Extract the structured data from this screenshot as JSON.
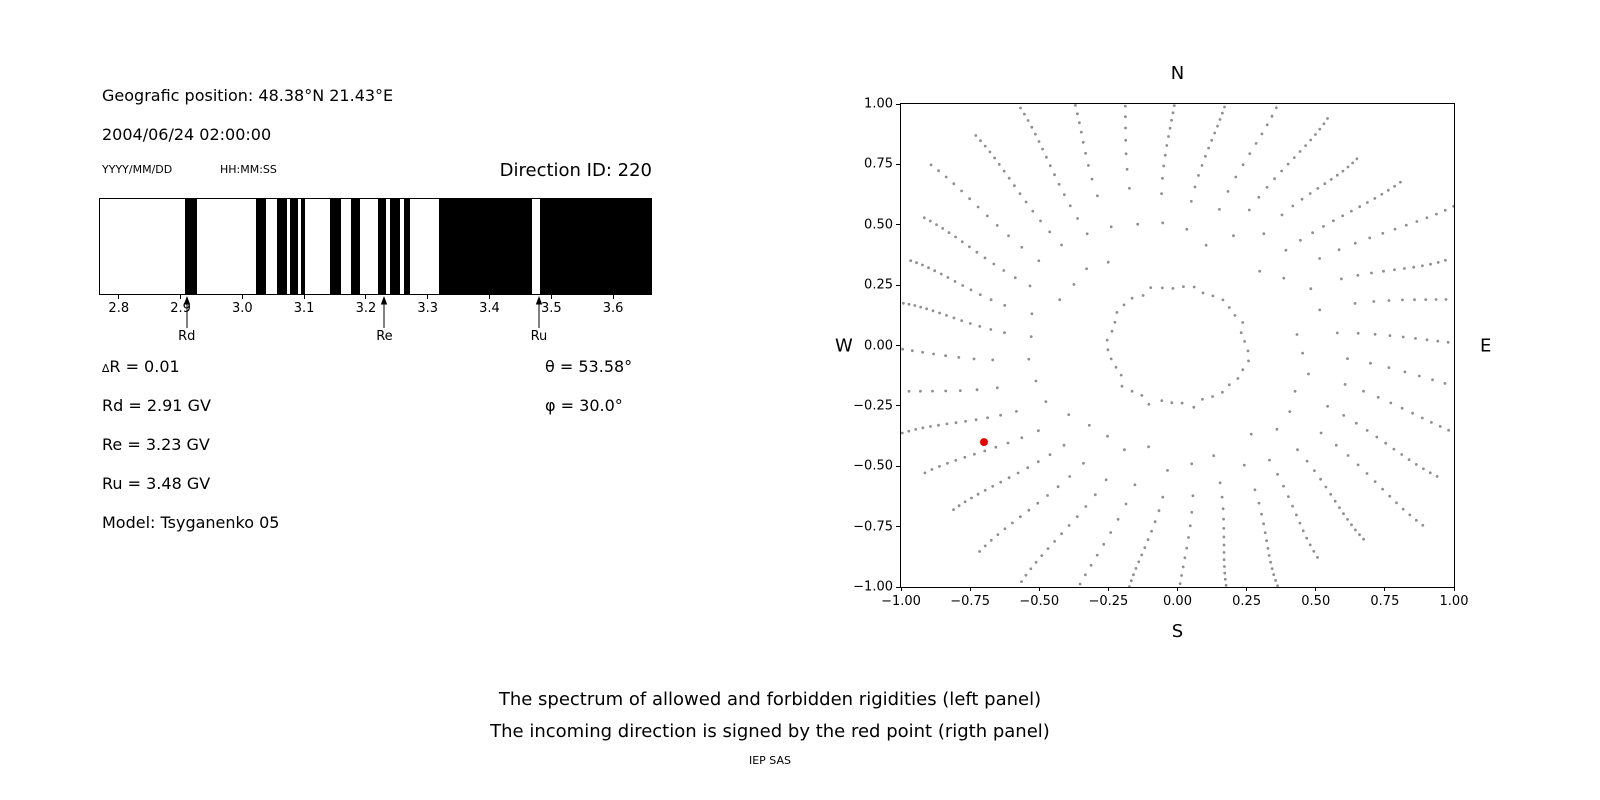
{
  "left_panel": {
    "geo_position": "Geografic position: 48.38°N 21.43°E",
    "datetime": "2004/06/24 02:00:00",
    "date_hint": "YYYY/MM/DD",
    "time_hint": "HH:MM:SS",
    "direction_id": "Direction ID: 220",
    "delta_symbol": "∆",
    "delta_rest": "R = 0.01",
    "params": [
      "Rd = 2.91 GV",
      "Re = 3.23 GV",
      "Ru = 3.48 GV",
      "Model: Tsyganenko 05"
    ],
    "angles": [
      "θ = 53.58°",
      "φ = 30.0°"
    ]
  },
  "chart_data": [
    {
      "type": "bar",
      "panel": "left",
      "xlim": [
        2.768,
        3.663
      ],
      "xticks": [
        "2.8",
        "2.9",
        "3.0",
        "3.1",
        "3.2",
        "3.3",
        "3.4",
        "3.5",
        "3.6"
      ],
      "xtick_values": [
        2.8,
        2.9,
        3.0,
        3.1,
        3.2,
        3.3,
        3.4,
        3.5,
        3.6
      ],
      "band_color": "#000000",
      "background_color": "#ffffff",
      "forbidden_bands_gv": [
        [
          2.906,
          2.925
        ],
        [
          3.022,
          3.038
        ],
        [
          3.056,
          3.071
        ],
        [
          3.076,
          3.09
        ],
        [
          3.094,
          3.101
        ],
        [
          3.142,
          3.159
        ],
        [
          3.175,
          3.19
        ],
        [
          3.22,
          3.232
        ],
        [
          3.239,
          3.255
        ],
        [
          3.261,
          3.272
        ],
        [
          3.319,
          3.47
        ],
        [
          3.483,
          3.663
        ]
      ],
      "markers": [
        {
          "label": "Rd",
          "value_gv": 2.91
        },
        {
          "label": "Re",
          "value_gv": 3.23
        },
        {
          "label": "Ru",
          "value_gv": 3.48
        }
      ]
    },
    {
      "type": "scatter",
      "panel": "right",
      "xlim": [
        -1.0,
        1.0
      ],
      "ylim": [
        -1.0,
        1.0
      ],
      "xticks": [
        "−1.00",
        "−0.75",
        "−0.50",
        "−0.25",
        "0.00",
        "0.25",
        "0.50",
        "0.75",
        "1.00"
      ],
      "xtick_values": [
        -1.0,
        -0.75,
        -0.5,
        -0.25,
        0.0,
        0.25,
        0.5,
        0.75,
        1.0
      ],
      "yticks": [
        "1.00",
        "0.75",
        "0.50",
        "0.25",
        "0.00",
        "−0.25",
        "−0.50",
        "−0.75",
        "−1.00"
      ],
      "ytick_values": [
        1.0,
        0.75,
        0.5,
        0.25,
        0.0,
        -0.25,
        -0.5,
        -0.75,
        -1.0
      ],
      "compass_labels": {
        "top": "N",
        "bottom": "S",
        "left": "W",
        "right": "E"
      },
      "dot_color": "#8f8f8f",
      "rays": {
        "count": 36,
        "angle_step_deg": 10,
        "r_inner_min": 0.42,
        "r_inner_jitter": 0.14,
        "r_outer_min": 1.0,
        "r_outer_jitter": 0.18,
        "dots_min": 12,
        "dots_jitter": 4,
        "bunch_exponent": 0.6,
        "curvature_deg": 6
      },
      "inner_ring": {
        "radius": 0.25,
        "dot_count": 40,
        "radius_jitter": 0.015
      },
      "red_point": {
        "x": -0.7,
        "y": -0.4,
        "color": "#e60000"
      }
    }
  ],
  "captions": {
    "line1": "The spectrum of allowed and forbidden rigidities (left panel)",
    "line2": "The incoming direction is signed by the red point (rigth panel)",
    "credit": "IEP SAS"
  }
}
